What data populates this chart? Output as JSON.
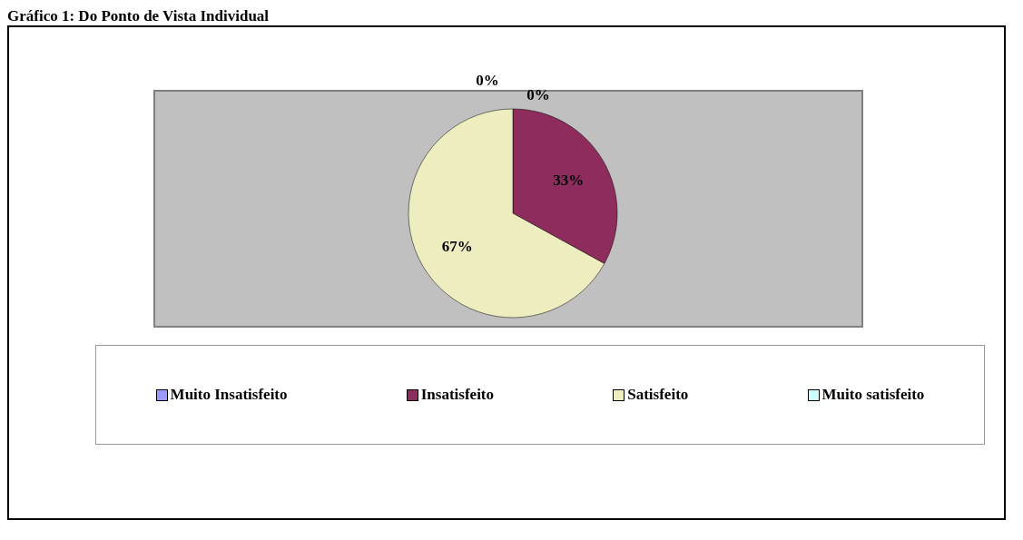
{
  "chart_data": {
    "type": "pie",
    "title": "Gráfico 1: Do Ponto de Vista Individual",
    "categories": [
      "Muito Insatisfeito",
      "Insatisfeito",
      "Satisfeito",
      "Muito satisfeito"
    ],
    "values": [
      0,
      33,
      67,
      0
    ],
    "colors": [
      "#9999ff",
      "#8e2d5d",
      "#ededc0",
      "#ccffff"
    ],
    "value_labels": [
      "0%",
      "33%",
      "67%",
      "0%"
    ],
    "legend": "bottom"
  }
}
